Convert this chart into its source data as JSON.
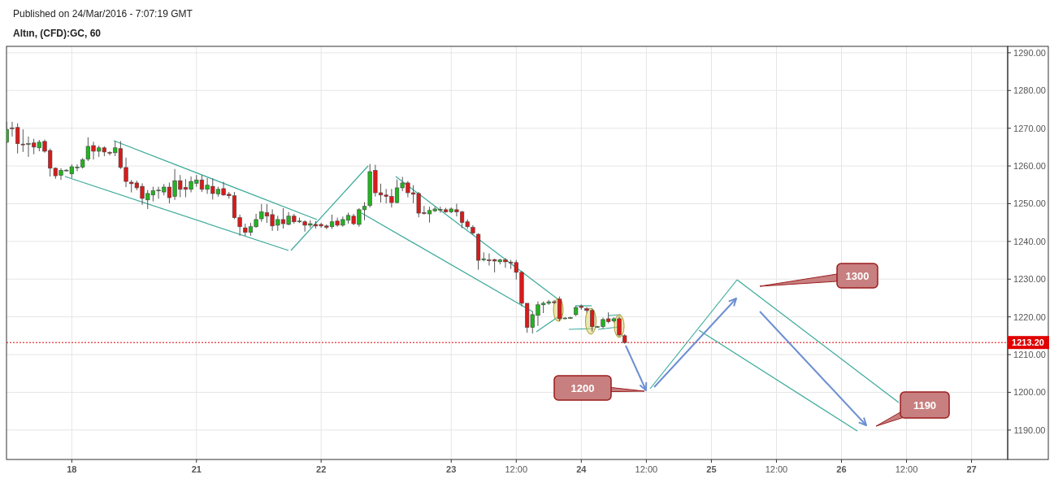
{
  "chart_data": {
    "type": "candlestick",
    "title": "Altın, (CFD):GC, 60",
    "subtitle": "Published on 24/Mar/2016 - 7:07:19 GMT",
    "annotations": [
      "1200",
      "1300",
      "1190"
    ],
    "categories": [
      null,
      null,
      null,
      null,
      null,
      null,
      null,
      null,
      null,
      null,
      null,
      null,
      "18",
      null,
      null,
      null,
      null,
      null,
      null,
      null,
      null,
      null,
      null,
      null,
      null,
      null,
      null,
      null,
      null,
      null,
      null,
      null,
      null,
      null,
      null,
      "21",
      null,
      null,
      null,
      null,
      null,
      null,
      null,
      null,
      null,
      null,
      null,
      null,
      null,
      null,
      null,
      null,
      null,
      null,
      null,
      null,
      null,
      null,
      "22",
      null,
      null,
      null,
      null,
      null,
      null,
      null,
      null,
      null,
      null,
      null,
      null,
      null,
      null,
      null,
      null,
      null,
      null,
      null,
      null,
      null,
      null,
      null,
      "23",
      null,
      null,
      null,
      null,
      null,
      null,
      null,
      null,
      null,
      null,
      null,
      "12:00",
      null,
      null,
      null,
      null,
      null,
      null,
      null,
      null,
      null,
      null,
      null,
      "24",
      null,
      null,
      null,
      null,
      null,
      null,
      null,
      null,
      null,
      null,
      null,
      "12:00",
      null,
      null,
      null,
      null,
      null,
      null,
      null,
      null,
      null,
      null,
      null,
      "25",
      null,
      null,
      null,
      null,
      null,
      null,
      null,
      null,
      null,
      null,
      null,
      "12:00",
      null,
      null,
      null,
      null,
      null,
      null,
      null,
      null,
      null,
      null,
      null,
      "26",
      null,
      null,
      null,
      null,
      null,
      null,
      null,
      null,
      null,
      null,
      null,
      "12:00",
      null,
      null,
      null,
      null,
      null,
      null,
      null,
      null,
      null,
      null,
      null,
      "27",
      null,
      null,
      null,
      null,
      null,
      null,
      null
    ],
    "ohlc": [
      [
        1266.3,
        1271.7,
        1266,
        1269.7
      ],
      [
        1270.1,
        1271.7,
        1267.8,
        1270
      ],
      [
        1270.2,
        1271.3,
        1263.3,
        1265.9
      ],
      [
        1265.8,
        1269.7,
        1263.7,
        1265.7
      ],
      [
        1265.8,
        1267.8,
        1262.4,
        1265.9
      ],
      [
        1266.1,
        1267.2,
        1263.1,
        1265
      ],
      [
        1264.8,
        1266.9,
        1263.9,
        1266.3
      ],
      [
        1266.5,
        1267,
        1263.5,
        1263.9
      ],
      [
        1264.1,
        1264.6,
        1257.2,
        1259.4
      ],
      [
        1259.4,
        1259.6,
        1256.6,
        1257.4
      ],
      [
        1257.5,
        1259.4,
        1256.3,
        1258.8
      ],
      [
        1258.8,
        1259.1,
        1258.6,
        1258.9
      ],
      [
        1257.9,
        1260.4,
        1256.8,
        1259.8
      ],
      [
        1259.6,
        1260.4,
        1258.6,
        1259.7
      ],
      [
        1259.7,
        1262.1,
        1259.3,
        1261.6
      ],
      [
        1261.8,
        1267.6,
        1261.3,
        1265.2
      ],
      [
        1265.4,
        1266.4,
        1261.7,
        1263.9
      ],
      [
        1263.9,
        1265.4,
        1262.4,
        1264.8
      ],
      [
        1264.8,
        1265.2,
        1262.6,
        1263.7
      ],
      [
        1263.6,
        1263.9,
        1262.8,
        1263.5
      ],
      [
        1263.5,
        1266.6,
        1262.6,
        1264.8
      ],
      [
        1264.6,
        1266.6,
        1259.2,
        1259.6
      ],
      [
        1259.6,
        1262.2,
        1254.4,
        1255.9
      ],
      [
        1255.7,
        1256.3,
        1253,
        1255.3
      ],
      [
        1255.5,
        1256.1,
        1253.6,
        1254.2
      ],
      [
        1254.6,
        1255.4,
        1249.7,
        1251.4
      ],
      [
        1251,
        1253.6,
        1248.6,
        1252.7
      ],
      [
        1252.3,
        1254.5,
        1250.6,
        1253.4
      ],
      [
        1253.5,
        1254.5,
        1251.3,
        1253.6
      ],
      [
        1253.1,
        1255.2,
        1252.2,
        1254.4
      ],
      [
        1254.4,
        1255.6,
        1250.1,
        1251.6
      ],
      [
        1251.9,
        1259.2,
        1251,
        1256.1
      ],
      [
        1256.1,
        1257.6,
        1251.7,
        1253.8
      ],
      [
        1254.3,
        1256.5,
        1251.7,
        1253.8
      ],
      [
        1253.8,
        1257.2,
        1253,
        1255.9
      ],
      [
        1255.4,
        1257.6,
        1254.5,
        1256.3
      ],
      [
        1256.3,
        1257.6,
        1253.1,
        1253.8
      ],
      [
        1253.8,
        1256.8,
        1252.6,
        1254.9
      ],
      [
        1254.6,
        1256.7,
        1251.1,
        1252.7
      ],
      [
        1252.6,
        1254.5,
        1251.9,
        1253.8
      ],
      [
        1254,
        1255.8,
        1252.1,
        1252.3
      ],
      [
        1252.5,
        1253.1,
        1251.3,
        1252.1
      ],
      [
        1252.1,
        1253.1,
        1245.9,
        1246.3
      ],
      [
        1246.3,
        1247.1,
        1241.5,
        1243.9
      ],
      [
        1243.6,
        1244.7,
        1241.5,
        1242.4
      ],
      [
        1242.4,
        1244.9,
        1241.5,
        1243.9
      ],
      [
        1243.9,
        1247.3,
        1243.6,
        1245.8
      ],
      [
        1246,
        1249.9,
        1245.2,
        1247.8
      ],
      [
        1247.6,
        1249.9,
        1244.9,
        1246.7
      ],
      [
        1247.1,
        1248.5,
        1242.8,
        1244.1
      ],
      [
        1244.3,
        1246.8,
        1242.8,
        1245.8
      ],
      [
        1245.8,
        1248.8,
        1243.4,
        1244.7
      ],
      [
        1244.5,
        1247.8,
        1244.3,
        1246.7
      ],
      [
        1246.7,
        1247.3,
        1244.7,
        1245.2
      ],
      [
        1245.2,
        1246.3,
        1244.9,
        1245.4
      ],
      [
        1245.2,
        1245.6,
        1242.6,
        1244.3
      ],
      [
        1244.3,
        1245.6,
        1243.6,
        1244.7
      ],
      [
        1244.5,
        1245.4,
        1243.4,
        1244.1
      ],
      [
        1244.5,
        1244.9,
        1243.6,
        1244.1
      ],
      [
        1244.1,
        1244.5,
        1243.2,
        1243.7
      ],
      [
        1243.9,
        1247.1,
        1243.3,
        1245.2
      ],
      [
        1245.4,
        1246.3,
        1243.9,
        1244.3
      ],
      [
        1244.3,
        1246.6,
        1243.9,
        1245.8
      ],
      [
        1245.6,
        1247.6,
        1244.7,
        1246.9
      ],
      [
        1246.7,
        1247.3,
        1244.3,
        1244.7
      ],
      [
        1244.5,
        1248.8,
        1243.9,
        1248.4
      ],
      [
        1248.4,
        1250.4,
        1245.6,
        1249.3
      ],
      [
        1249.5,
        1260.5,
        1249,
        1258.5
      ],
      [
        1258.8,
        1260.3,
        1251.9,
        1252.9
      ],
      [
        1252.9,
        1255.3,
        1250.3,
        1252.3
      ],
      [
        1252.3,
        1253.9,
        1250.1,
        1251.9
      ],
      [
        1251.9,
        1253.9,
        1249,
        1250.3
      ],
      [
        1250.3,
        1256.4,
        1250.1,
        1254.2
      ],
      [
        1254.2,
        1257.1,
        1253.3,
        1255.5
      ],
      [
        1255.5,
        1256,
        1251.7,
        1252.9
      ],
      [
        1252.9,
        1254.9,
        1250.1,
        1252.5
      ],
      [
        1252.7,
        1253.1,
        1246.4,
        1247.5
      ],
      [
        1247.6,
        1249.4,
        1247.1,
        1247.5
      ],
      [
        1247.3,
        1249.2,
        1245,
        1248.2
      ],
      [
        1248.1,
        1249.2,
        1247.8,
        1248.6
      ],
      [
        1248.3,
        1249.2,
        1247.6,
        1248.5
      ],
      [
        1248.4,
        1248.9,
        1247.6,
        1247.8
      ],
      [
        1247.8,
        1249,
        1247.5,
        1248.6
      ],
      [
        1248.4,
        1250,
        1246.6,
        1247.8
      ],
      [
        1247.8,
        1248.1,
        1243.5,
        1245
      ],
      [
        1245.2,
        1245.8,
        1243.3,
        1243.9
      ],
      [
        1243.7,
        1244.3,
        1241.7,
        1242.2
      ],
      [
        1241.9,
        1242.2,
        1232.5,
        1235
      ],
      [
        1235.1,
        1237.1,
        1234.7,
        1235.4
      ],
      [
        1235.1,
        1236.8,
        1233.6,
        1235
      ],
      [
        1235.2,
        1235.4,
        1231.8,
        1234.8
      ],
      [
        1234.6,
        1235.4,
        1233.9,
        1235.1
      ],
      [
        1235.1,
        1235.6,
        1233,
        1234.6
      ],
      [
        1234.5,
        1235.1,
        1232.7,
        1234.4
      ],
      [
        1234.4,
        1235.1,
        1229.9,
        1231.8
      ],
      [
        1231.8,
        1232.2,
        1222.8,
        1223.6
      ],
      [
        1223.6,
        1223.6,
        1215.8,
        1217.2
      ],
      [
        1217.2,
        1221.5,
        1215.6,
        1220.6
      ],
      [
        1220.4,
        1224.1,
        1217.6,
        1223.2
      ],
      [
        1223.2,
        1224.1,
        1221,
        1223.6
      ],
      [
        1223.6,
        1224.5,
        1223.2,
        1224
      ],
      [
        1224,
        1224.5,
        1223.4,
        1223.8
      ],
      [
        1224.7,
        1225.4,
        1218.8,
        1219.5
      ],
      [
        1219.6,
        1219.9,
        1219.4,
        1219.7
      ],
      [
        1219.7,
        1220,
        1219.5,
        1219.8
      ],
      [
        1220.6,
        1222.9,
        1220.2,
        1222.5
      ],
      [
        1222.8,
        1223.3,
        1221.9,
        1222.5
      ],
      [
        1222.2,
        1222.6,
        1221.1,
        1221.7
      ],
      [
        1221.7,
        1222.2,
        1216.1,
        1217.4
      ],
      [
        1217.3,
        1217.6,
        1217.1,
        1217.4
      ],
      [
        1217.4,
        1219.8,
        1216.9,
        1219.3
      ],
      [
        1219.5,
        1221.2,
        1218.3,
        1218.7
      ],
      [
        1218.9,
        1219.9,
        1218.5,
        1219.5
      ],
      [
        1219.5,
        1220.1,
        1214.8,
        1215.2
      ],
      [
        1215,
        1215.4,
        1212.9,
        1213.2
      ],
      null,
      null,
      null,
      null,
      null,
      null,
      null,
      null,
      null,
      null,
      null,
      null,
      null,
      null,
      null,
      null,
      null,
      null,
      null,
      null,
      null,
      null,
      null,
      null,
      null,
      null,
      null,
      null,
      null,
      null,
      null,
      null,
      null,
      null,
      null,
      null,
      null,
      null,
      null,
      null,
      null,
      null,
      null,
      null,
      null,
      null,
      null,
      null,
      null,
      null,
      null,
      null,
      null,
      null,
      null,
      null,
      null,
      null,
      null,
      null,
      null,
      null,
      null,
      null,
      null,
      null,
      null,
      null,
      null,
      null,
      null
    ],
    "ylim": [
      1182.2,
      1291.7
    ],
    "yticks": [
      {
        "value": 1190,
        "label": "1190.00"
      },
      {
        "value": 1200,
        "label": "1200.00"
      },
      {
        "value": 1210,
        "label": "1210.00"
      },
      {
        "value": 1220,
        "label": "1220.00"
      },
      {
        "value": 1230,
        "label": "1230.00"
      },
      {
        "value": 1240,
        "label": "1240.00"
      },
      {
        "value": 1250,
        "label": "1250.00"
      },
      {
        "value": 1260,
        "label": "1260.00"
      },
      {
        "value": 1270,
        "label": "1270.00"
      },
      {
        "value": 1280,
        "label": "1280.00"
      },
      {
        "value": 1290,
        "label": "1290.00"
      }
    ],
    "ref_lines": [
      {
        "axis": "y",
        "value": 1213.2,
        "label": "1213.20",
        "color": "#e00000",
        "line_style": "dotted"
      }
    ],
    "grid": true
  }
}
